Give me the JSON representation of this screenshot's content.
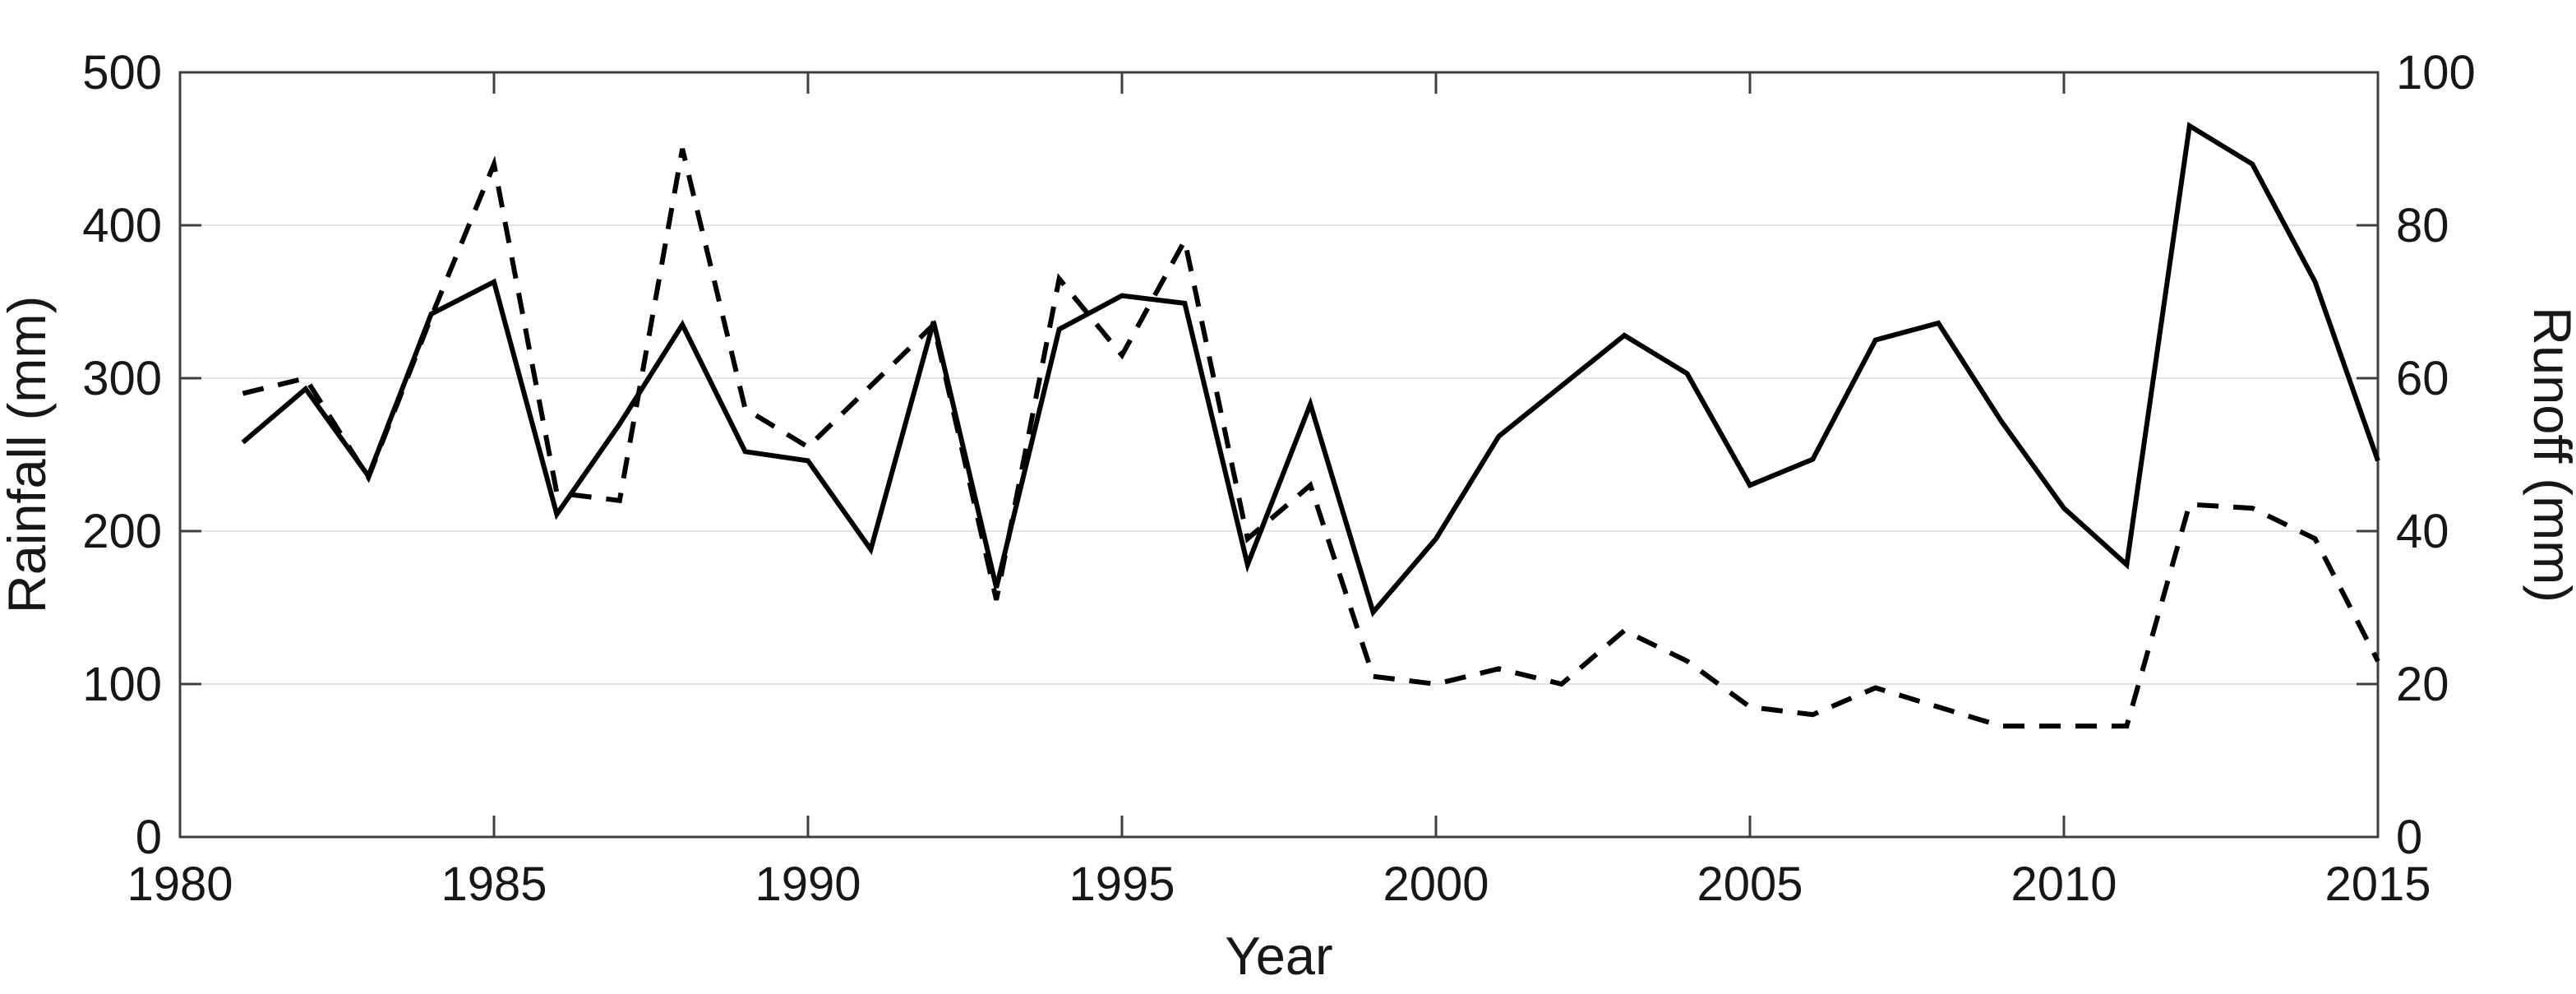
{
  "chart_data": {
    "type": "line",
    "title": "",
    "xlabel": "Year",
    "ylabel_left": "Rainfall (mm)",
    "ylabel_right": "Runoff (mm)",
    "xlim": [
      1980,
      2015
    ],
    "ylim_left": [
      0,
      500
    ],
    "ylim_right": [
      0,
      100
    ],
    "x_ticks": [
      1980,
      1985,
      1990,
      1995,
      2000,
      2005,
      2010,
      2015
    ],
    "y_ticks_left": [
      0,
      100,
      200,
      300,
      400,
      500
    ],
    "y_ticks_right": [
      0,
      20,
      40,
      60,
      80,
      100
    ],
    "grid": "horizontal-only",
    "legend": "none",
    "colors": {
      "line": "#000000",
      "axis": "#3f3f3f",
      "gridline": "#e4e4e4",
      "text": "#171717",
      "background": "#ffffff"
    },
    "years": [
      1981,
      1982,
      1983,
      1984,
      1985,
      1986,
      1987,
      1988,
      1989,
      1990,
      1991,
      1992,
      1993,
      1994,
      1995,
      1996,
      1997,
      1998,
      1999,
      2000,
      2001,
      2002,
      2003,
      2004,
      2005,
      2006,
      2007,
      2008,
      2009,
      2010,
      2011,
      2012,
      2013,
      2014,
      2015
    ],
    "series": [
      {
        "name": "Rainfall",
        "axis": "left",
        "style": "solid",
        "values": [
          258,
          293,
          236,
          342,
          363,
          211,
          270,
          335,
          252,
          246,
          188,
          337,
          163,
          332,
          354,
          349,
          178,
          283,
          147,
          195,
          262,
          295,
          328,
          303,
          230,
          247,
          325,
          336,
          272,
          215,
          178,
          465,
          440,
          363,
          246
        ]
      },
      {
        "name": "Runoff",
        "axis": "right",
        "style": "dashed",
        "values": [
          58,
          60,
          47,
          68,
          88,
          45,
          44,
          90,
          56,
          51,
          59,
          67,
          31,
          73,
          63,
          78,
          39,
          46,
          21,
          20,
          22,
          20,
          27,
          23,
          17,
          16,
          19.5,
          17,
          14.5,
          14.5,
          14.5,
          43.5,
          43,
          39,
          23
        ]
      }
    ]
  }
}
